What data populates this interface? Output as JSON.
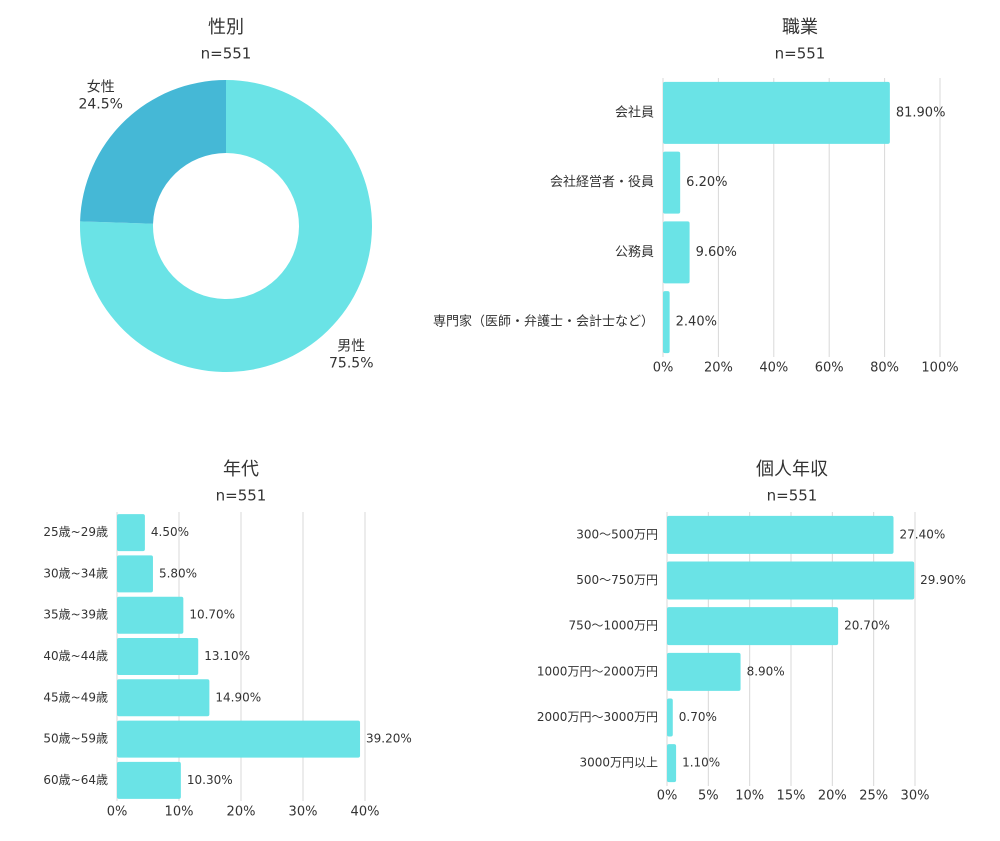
{
  "chart_data": [
    {
      "type": "pie",
      "title": "性別",
      "subtitle": "n=551",
      "categories": [
        "男性",
        "女性"
      ],
      "values": [
        75.5,
        24.5
      ],
      "value_labels": [
        "75.5%",
        "24.5%"
      ],
      "colors": [
        "#6ae3e6",
        "#45b8d6"
      ],
      "donut": true
    },
    {
      "type": "hbar",
      "title": "職業",
      "subtitle": "n=551",
      "categories": [
        "会社員",
        "会社経営者・役員",
        "公務員",
        "専門家（医師・弁護士・会計士など）"
      ],
      "values": [
        81.9,
        6.2,
        9.6,
        2.4
      ],
      "value_labels": [
        "81.90%",
        "6.20%",
        "9.60%",
        "2.40%"
      ],
      "color": "#6ae3e6",
      "xlim": [
        0,
        100
      ],
      "xticks": [
        {
          "value": 0,
          "label": "0%"
        },
        {
          "value": 20,
          "label": "20%"
        },
        {
          "value": 40,
          "label": "40%"
        },
        {
          "value": 60,
          "label": "60%"
        },
        {
          "value": 80,
          "label": "80%"
        },
        {
          "value": 100,
          "label": "100%"
        }
      ],
      "grid": true
    },
    {
      "type": "hbar",
      "title": "年代",
      "subtitle": "n=551",
      "categories": [
        "25歳~29歳",
        "30歳~34歳",
        "35歳~39歳",
        "40歳~44歳",
        "45歳~49歳",
        "50歳~59歳",
        "60歳~64歳"
      ],
      "values": [
        4.5,
        5.8,
        10.7,
        13.1,
        14.9,
        39.2,
        10.3
      ],
      "value_labels": [
        "4.50%",
        "5.80%",
        "10.70%",
        "13.10%",
        "14.90%",
        "39.20%",
        "10.30%"
      ],
      "color": "#6ae3e6",
      "xlim": [
        0,
        40
      ],
      "xticks": [
        {
          "value": 0,
          "label": "0%"
        },
        {
          "value": 10,
          "label": "10%"
        },
        {
          "value": 20,
          "label": "20%"
        },
        {
          "value": 30,
          "label": "30%"
        },
        {
          "value": 40,
          "label": "40%"
        }
      ],
      "grid": true
    },
    {
      "type": "hbar",
      "title": "個人年収",
      "subtitle": "n=551",
      "categories": [
        "300〜500万円",
        "500〜750万円",
        "750〜1000万円",
        "1000万円〜2000万円",
        "2000万円〜3000万円",
        "3000万円以上"
      ],
      "values": [
        27.4,
        29.9,
        20.7,
        8.9,
        0.7,
        1.1
      ],
      "value_labels": [
        "27.40%",
        "29.90%",
        "20.70%",
        "8.90%",
        "0.70%",
        "1.10%"
      ],
      "color": "#6ae3e6",
      "xlim": [
        0,
        30
      ],
      "xticks": [
        {
          "value": 0,
          "label": "0%"
        },
        {
          "value": 5,
          "label": "5%"
        },
        {
          "value": 10,
          "label": "10%"
        },
        {
          "value": 15,
          "label": "15%"
        },
        {
          "value": 20,
          "label": "20%"
        },
        {
          "value": 25,
          "label": "25%"
        },
        {
          "value": 30,
          "label": "30%"
        }
      ],
      "grid": true
    }
  ]
}
